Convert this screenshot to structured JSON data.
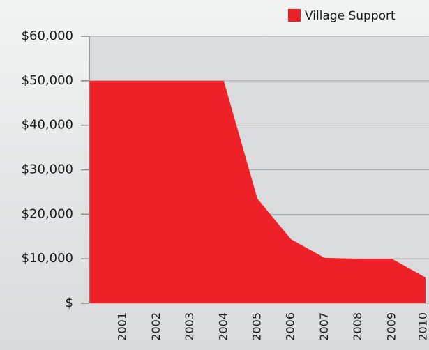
{
  "chart_data": {
    "type": "area",
    "categories": [
      null,
      "2001",
      "2002",
      "2003",
      "2004",
      "2005",
      "2006",
      "2007",
      "2008",
      "2009",
      "2010"
    ],
    "series": [
      {
        "name": "Village Support",
        "color": "#ee2028",
        "values": [
          50000,
          50000,
          50000,
          50000,
          50000,
          23500,
          14400,
          10200,
          10000,
          10000,
          5800
        ]
      }
    ],
    "ylim": [
      0,
      60000
    ],
    "yticks": [
      {
        "value": 0,
        "label": "$"
      },
      {
        "value": 10000,
        "label": "$10,000"
      },
      {
        "value": 20000,
        "label": "$20,000"
      },
      {
        "value": 30000,
        "label": "$30,000"
      },
      {
        "value": 40000,
        "label": "$40,000"
      },
      {
        "value": 50000,
        "label": "$50,000"
      },
      {
        "value": 60000,
        "label": "$60,000"
      }
    ],
    "grid": true,
    "legend": "top-right"
  }
}
